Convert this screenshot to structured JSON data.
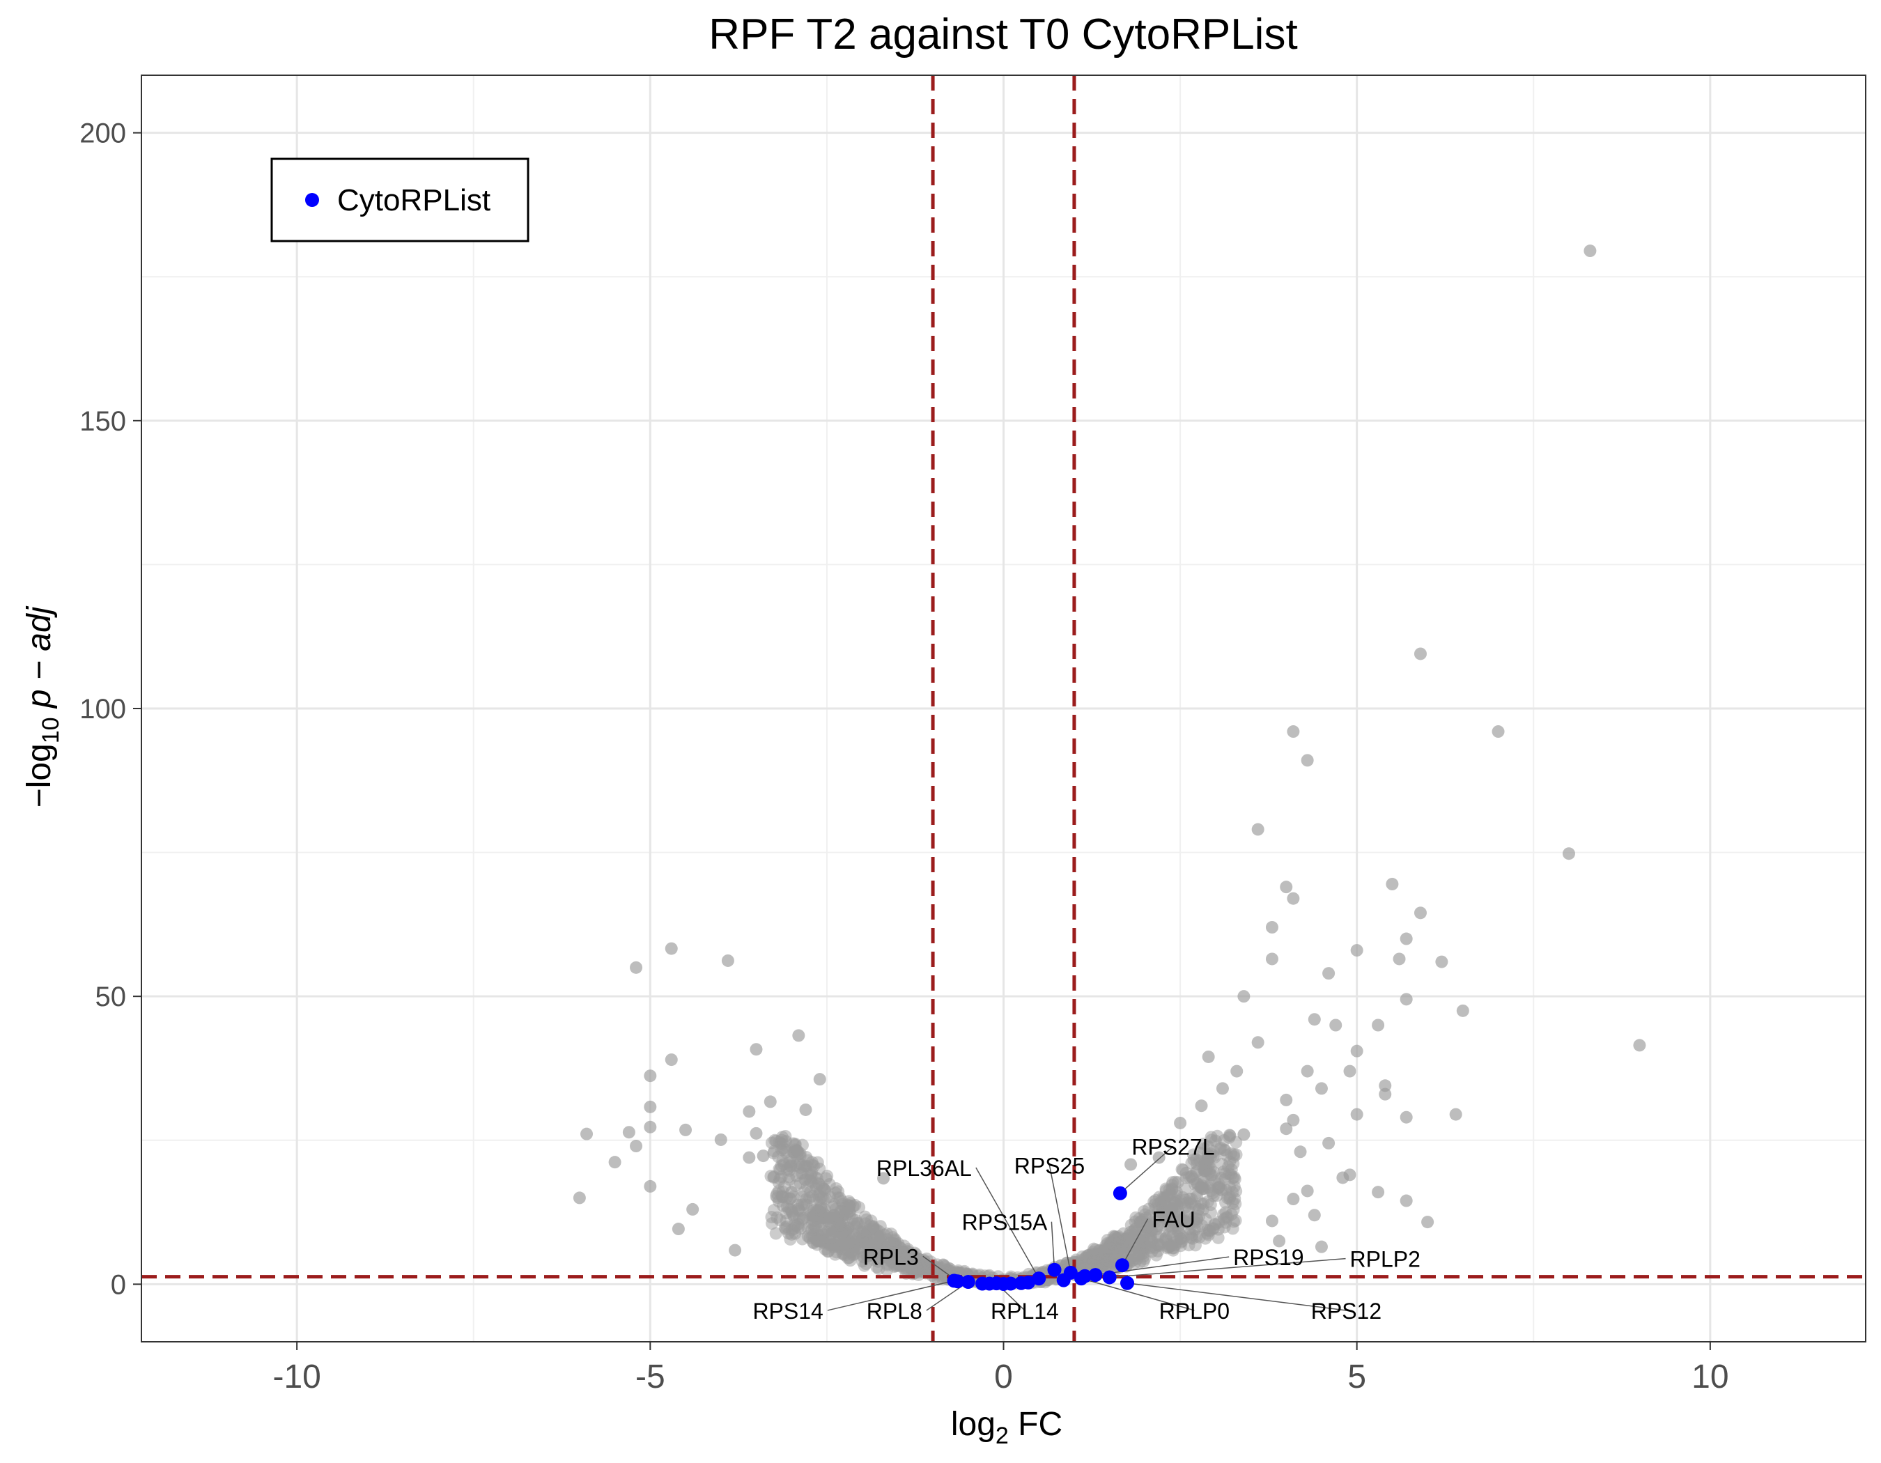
{
  "chart_data": {
    "type": "scatter",
    "title": "RPF T2 against T0 CytoRPList",
    "xlabel": {
      "prefix": "log",
      "sub": "2",
      "suffix": " FC"
    },
    "ylabel": {
      "prefix": "−log",
      "sub": "10",
      "suffix": " p − adj"
    },
    "xlim": [
      -12.2,
      12.2
    ],
    "ylim": [
      -10,
      210
    ],
    "x_ticks": [
      -10,
      -5,
      0,
      5,
      10
    ],
    "x_tick_labels": [
      "-10",
      "-5",
      "0",
      "5",
      "10"
    ],
    "y_ticks": [
      0,
      50,
      100,
      150,
      200
    ],
    "y_tick_labels": [
      "0",
      "50",
      "100",
      "150",
      "200"
    ],
    "grid": true,
    "legend": {
      "position": "top-left",
      "entries": [
        {
          "label": "CytoRPList",
          "color": "#0000ff"
        }
      ]
    },
    "thresholds": {
      "log2fc": [
        -1,
        1
      ],
      "neg_log10_padj": 1.3,
      "color": "#9b1c1c"
    },
    "colors": {
      "background_genes": "#999999",
      "cyto_rp": "#0000ff"
    },
    "background_points": [
      [
        8.3,
        179.5
      ],
      [
        5.9,
        109.5
      ],
      [
        7.0,
        96
      ],
      [
        4.1,
        96
      ],
      [
        4.3,
        91
      ],
      [
        3.6,
        79
      ],
      [
        8.0,
        74.8
      ],
      [
        4.0,
        69
      ],
      [
        4.1,
        67
      ],
      [
        5.5,
        69.5
      ],
      [
        5.9,
        64.5
      ],
      [
        3.8,
        62
      ],
      [
        5.7,
        60
      ],
      [
        5.6,
        56.5
      ],
      [
        6.2,
        56
      ],
      [
        3.8,
        56.5
      ],
      [
        5.0,
        58
      ],
      [
        4.6,
        54
      ],
      [
        5.7,
        49.5
      ],
      [
        3.4,
        50
      ],
      [
        6.5,
        47.5
      ],
      [
        5.3,
        45
      ],
      [
        4.4,
        46
      ],
      [
        4.7,
        45
      ],
      [
        9.0,
        41.5
      ],
      [
        3.6,
        42
      ],
      [
        5.0,
        40.5
      ],
      [
        2.9,
        39.5
      ],
      [
        4.3,
        37
      ],
      [
        3.3,
        37
      ],
      [
        4.9,
        37
      ],
      [
        5.4,
        34.5
      ],
      [
        4.5,
        34
      ],
      [
        3.1,
        34
      ],
      [
        5.0,
        29.5
      ],
      [
        6.4,
        29.5
      ],
      [
        5.7,
        29
      ],
      [
        4.0,
        32
      ],
      [
        4.1,
        28.5
      ],
      [
        2.5,
        28
      ],
      [
        2.8,
        31
      ],
      [
        4.6,
        24.5
      ],
      [
        3.4,
        26
      ],
      [
        4.2,
        23
      ],
      [
        4.0,
        27
      ],
      [
        5.4,
        33
      ],
      [
        4.8,
        18.5
      ],
      [
        4.9,
        19
      ],
      [
        4.3,
        16.2
      ],
      [
        5.3,
        16
      ],
      [
        4.1,
        14.8
      ],
      [
        5.7,
        14.5
      ],
      [
        6.0,
        10.8
      ],
      [
        4.4,
        12
      ],
      [
        4.5,
        6.5
      ],
      [
        3.8,
        11
      ],
      [
        3.9,
        7.5
      ],
      [
        2.2,
        22
      ],
      [
        1.8,
        20.8
      ],
      [
        -5.2,
        55
      ],
      [
        -4.7,
        58.3
      ],
      [
        -3.9,
        56.2
      ],
      [
        -2.9,
        43.2
      ],
      [
        -3.5,
        40.8
      ],
      [
        -4.7,
        39
      ],
      [
        -5.0,
        36.2
      ],
      [
        -2.6,
        35.6
      ],
      [
        -5.0,
        30.8
      ],
      [
        -3.6,
        30
      ],
      [
        -3.3,
        31.7
      ],
      [
        -2.8,
        30.3
      ],
      [
        -5.0,
        27.3
      ],
      [
        -5.3,
        26.4
      ],
      [
        -4.5,
        26.8
      ],
      [
        -3.5,
        26.2
      ],
      [
        -5.9,
        26.1
      ],
      [
        -4.0,
        25.1
      ],
      [
        -5.2,
        24
      ],
      [
        -3.6,
        22
      ],
      [
        -3.4,
        22.3
      ],
      [
        -5.5,
        21.2
      ],
      [
        -6.0,
        15
      ],
      [
        -5.0,
        17
      ],
      [
        -4.6,
        9.6
      ],
      [
        -3.8,
        5.9
      ],
      [
        -4.4,
        13
      ],
      [
        -3.0,
        16
      ],
      [
        -1.7,
        18.4
      ]
    ],
    "cyto_rp_points": [
      {
        "x": 1.65,
        "y": 15.8,
        "label": "RPS27L"
      },
      {
        "x": 1.68,
        "y": 3.3,
        "label": "FAU"
      },
      {
        "x": 0.72,
        "y": 2.5,
        "label": "RPS15A"
      },
      {
        "x": 0.95,
        "y": 2.0,
        "label": "RPS25"
      },
      {
        "x": 1.3,
        "y": 1.6,
        "label": "RPS19"
      },
      {
        "x": 0.5,
        "y": 1.0,
        "label": "RPL36AL"
      },
      {
        "x": -0.7,
        "y": 0.6,
        "label": "RPS14"
      },
      {
        "x": -0.5,
        "y": 0.4,
        "label": "RPL8"
      },
      {
        "x": -0.1,
        "y": 0.15,
        "label": "RPL14"
      },
      {
        "x": -0.65,
        "y": 0.5,
        "label": "RPL3"
      },
      {
        "x": 1.1,
        "y": 1.0,
        "label": "RPLP0"
      },
      {
        "x": 1.75,
        "y": 0.2,
        "label": "RPS12"
      },
      {
        "x": 1.5,
        "y": 1.2,
        "label": "RPLP2"
      },
      {
        "x": -0.3,
        "y": 0.1
      },
      {
        "x": 0.0,
        "y": 0.05
      },
      {
        "x": 0.1,
        "y": 0.1
      },
      {
        "x": 0.25,
        "y": 0.2
      },
      {
        "x": 0.35,
        "y": 0.3
      },
      {
        "x": 0.85,
        "y": 0.7
      },
      {
        "x": 1.15,
        "y": 1.4
      },
      {
        "x": -0.2,
        "y": 0.1
      }
    ],
    "annotations": [
      {
        "label": "RPS27L",
        "lx": 2.4,
        "ly": 22.5,
        "anchor": "middle"
      },
      {
        "label": "RPS25",
        "lx": 0.65,
        "ly": 19.2,
        "anchor": "middle"
      },
      {
        "label": "RPL36AL",
        "lx": -0.45,
        "ly": 18.8,
        "anchor": "end"
      },
      {
        "label": "RPS15A",
        "lx": 0.62,
        "ly": 9.4,
        "anchor": "end"
      },
      {
        "label": "FAU",
        "lx": 2.1,
        "ly": 9.9,
        "anchor": "start"
      },
      {
        "label": "RPS19",
        "lx": 3.25,
        "ly": 3.3,
        "anchor": "start"
      },
      {
        "label": "RPLP2",
        "lx": 4.9,
        "ly": 3.0,
        "anchor": "start"
      },
      {
        "label": "RPL3",
        "lx": -1.2,
        "ly": 3.4,
        "anchor": "end"
      },
      {
        "label": "RPS14",
        "lx": -2.55,
        "ly": -6.0,
        "anchor": "end"
      },
      {
        "label": "RPL8",
        "lx": -1.15,
        "ly": -6.0,
        "anchor": "end"
      },
      {
        "label": "RPL14",
        "lx": 0.3,
        "ly": -6.0,
        "anchor": "middle"
      },
      {
        "label": "RPLP0",
        "lx": 2.7,
        "ly": -6.0,
        "anchor": "middle"
      },
      {
        "label": "RPS12",
        "lx": 4.85,
        "ly": -6.0,
        "anchor": "middle"
      }
    ]
  }
}
